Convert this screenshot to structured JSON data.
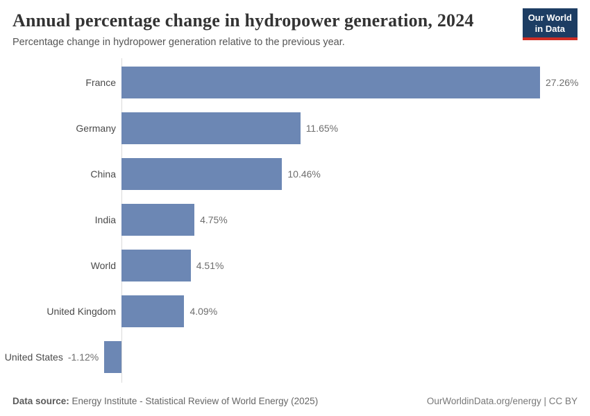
{
  "header": {
    "title": "Annual percentage change in hydropower generation, 2024",
    "subtitle": "Percentage change in hydropower generation relative to the previous year."
  },
  "logo": {
    "line1": "Our World",
    "line2": "in Data"
  },
  "chart_data": {
    "type": "bar",
    "orientation": "horizontal",
    "title": "Annual percentage change in hydropower generation, 2024",
    "categories": [
      "France",
      "Germany",
      "China",
      "India",
      "World",
      "United Kingdom",
      "United States"
    ],
    "values": [
      27.26,
      11.65,
      10.46,
      4.75,
      4.51,
      4.09,
      -1.12
    ],
    "value_labels": [
      "27.26%",
      "11.65%",
      "10.46%",
      "4.75%",
      "4.51%",
      "4.09%",
      "-1.12%"
    ],
    "xlabel": "",
    "ylabel": "",
    "xlim": [
      -1.12,
      27.26
    ],
    "grid": false,
    "legend": "none",
    "bar_color": "#6c87b4"
  },
  "footer": {
    "source_label": "Data source:",
    "source_text": " Energy Institute - Statistical Review of World Energy (2025)",
    "link_text": "OurWorldinData.org/energy | CC BY"
  },
  "colors": {
    "bar": "#6c87b4",
    "axis": "#dadada",
    "logo_bg": "#1d3d63",
    "logo_accent": "#cf2d24"
  }
}
